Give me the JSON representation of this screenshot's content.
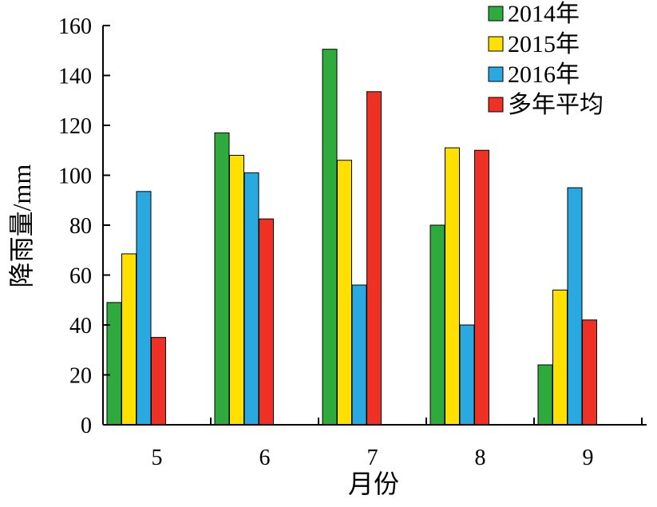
{
  "chart_data": {
    "type": "bar",
    "categories": [
      "5",
      "6",
      "7",
      "8",
      "9"
    ],
    "series": [
      {
        "name": "2014年",
        "color": "#2eab3c",
        "values": [
          49,
          117,
          150.5,
          80,
          24
        ]
      },
      {
        "name": "2015年",
        "color": "#ffe000",
        "values": [
          68.5,
          108,
          106,
          111,
          54
        ]
      },
      {
        "name": "2016年",
        "color": "#2aa8e0",
        "values": [
          93.5,
          101,
          56,
          40,
          95
        ]
      },
      {
        "name": "多年平均",
        "color": "#ee3124",
        "values": [
          35,
          82.5,
          133.5,
          110,
          42
        ]
      }
    ],
    "xlabel": "月份",
    "ylabel": "降雨量/mm",
    "ylim": [
      0,
      160
    ],
    "yticks": [
      0,
      20,
      40,
      60,
      80,
      100,
      120,
      140,
      160
    ],
    "legend_position": "top-right",
    "grid": false
  }
}
